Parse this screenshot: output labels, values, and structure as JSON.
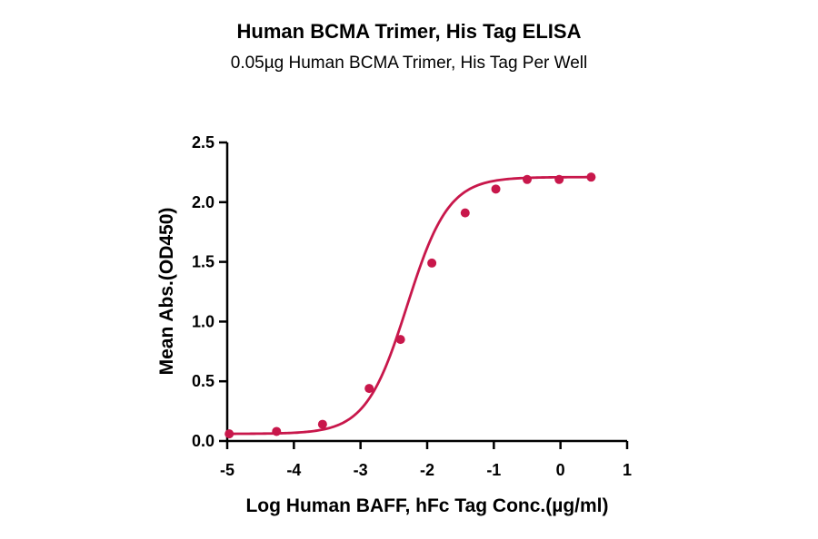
{
  "title": "Human BCMA Trimer, His Tag ELISA",
  "subtitle": "0.05µg Human BCMA Trimer, His Tag Per Well",
  "colors": {
    "curve": "#c8174b",
    "axis": "#000000"
  },
  "chart_data": {
    "type": "scatter",
    "xlabel": "Log Human BAFF, hFc Tag Conc.(µg/ml)",
    "ylabel": "Mean Abs.(OD450)",
    "xlim": [
      -5,
      1
    ],
    "ylim": [
      0,
      2.5
    ],
    "x_ticks": [
      -5,
      -4,
      -3,
      -2,
      -1,
      0,
      1
    ],
    "x_tick_labels": [
      "-5",
      "-4",
      "-3",
      "-2",
      "-1",
      "0",
      "1"
    ],
    "y_ticks": [
      0,
      0.5,
      1,
      1.5,
      2,
      2.5
    ],
    "y_tick_labels": [
      "0.0",
      "0.5",
      "1.0",
      "1.5",
      "2.0",
      "2.5"
    ],
    "series": [
      {
        "points": [
          {
            "x": -4.97,
            "y": 0.06
          },
          {
            "x": -4.26,
            "y": 0.08
          },
          {
            "x": -3.57,
            "y": 0.14
          },
          {
            "x": -2.87,
            "y": 0.44
          },
          {
            "x": -2.4,
            "y": 0.85
          },
          {
            "x": -1.93,
            "y": 1.49
          },
          {
            "x": -1.43,
            "y": 1.91
          },
          {
            "x": -0.97,
            "y": 2.11
          },
          {
            "x": -0.5,
            "y": 2.19
          },
          {
            "x": -0.02,
            "y": 2.19
          },
          {
            "x": 0.46,
            "y": 2.21
          }
        ],
        "fit": {
          "model": "4PL",
          "bottom": 0.06,
          "top": 2.21,
          "logEC50": -2.3,
          "hill": 1.4
        }
      }
    ]
  }
}
